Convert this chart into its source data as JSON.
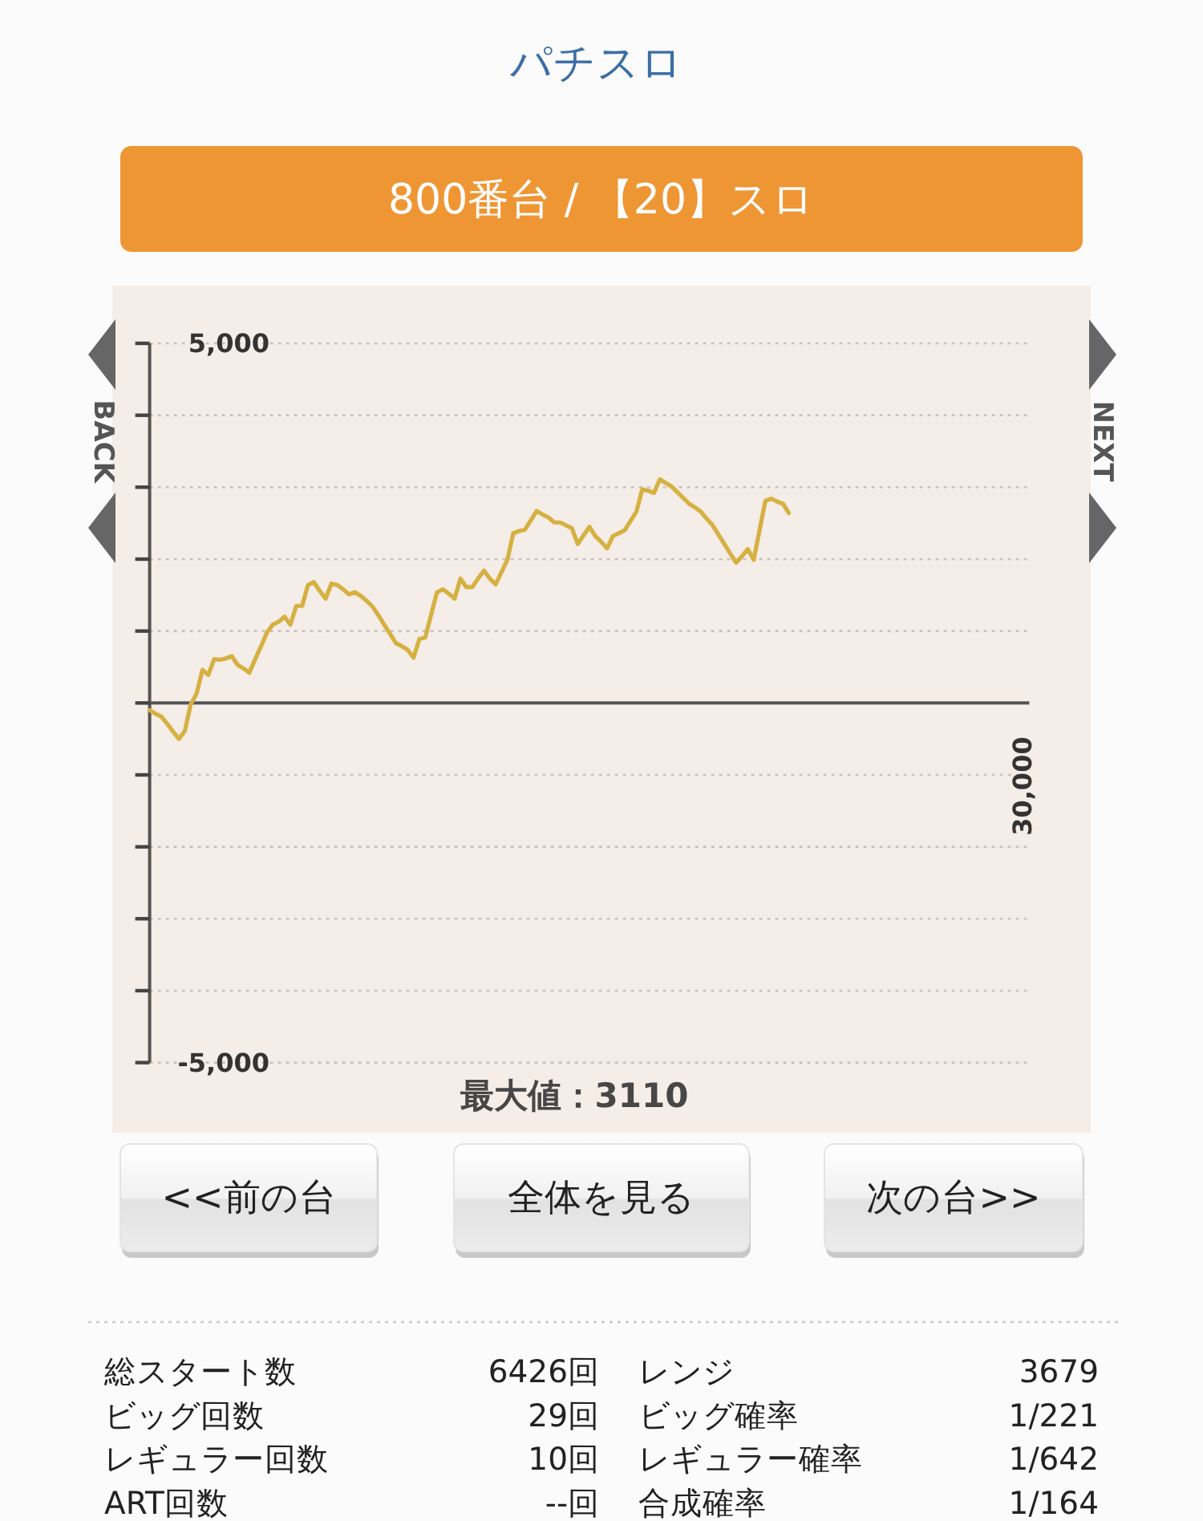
{
  "chart_data": {
    "type": "line",
    "title": "パチスロ",
    "subtitle": "800番台 / 【20】スロ",
    "categories": [
      null,
      null,
      null,
      null,
      null,
      null,
      null,
      null,
      null,
      null,
      null,
      null,
      null,
      null,
      null,
      null,
      null,
      null,
      null,
      null,
      null,
      null,
      null,
      null,
      null,
      null,
      null,
      null,
      null,
      null,
      null,
      null,
      null,
      null,
      null,
      null,
      null,
      null,
      null,
      null,
      null,
      null,
      null,
      null,
      null,
      null,
      null,
      null,
      null,
      null,
      null,
      null,
      null,
      null,
      null,
      null,
      null,
      null,
      null,
      null,
      null,
      null,
      null,
      null,
      null,
      null,
      null,
      null,
      null,
      null,
      null,
      null,
      null,
      null,
      null,
      null,
      null,
      null,
      null,
      null,
      null,
      null,
      null,
      null,
      null,
      null,
      null,
      null,
      null,
      null,
      null,
      null,
      null,
      null,
      null,
      null,
      null,
      null,
      null,
      null,
      null,
      null,
      null,
      null,
      null,
      null,
      null,
      null,
      null,
      null,
      null,
      null,
      null,
      null,
      null,
      null,
      null,
      null,
      null,
      null,
      null,
      null,
      null,
      null,
      null,
      null,
      null,
      null,
      null,
      null,
      null,
      null,
      null,
      null,
      null,
      null,
      null,
      null,
      null,
      null,
      null,
      null,
      null,
      null,
      null,
      null,
      null,
      null,
      null,
      null,
      null
    ],
    "values": [
      -100,
      -150,
      -190,
      -290,
      -400,
      -500,
      -390,
      -20,
      130,
      460,
      390,
      610,
      600,
      620,
      650,
      530,
      480,
      420,
      610,
      790,
      980,
      1090,
      1130,
      1200,
      1090,
      1350,
      1350,
      1640,
      1680,
      1560,
      1450,
      1660,
      1640,
      1580,
      1510,
      1540,
      1490,
      1420,
      1340,
      1220,
      1090,
      960,
      830,
      790,
      740,
      630,
      890,
      910,
      1230,
      1540,
      1580,
      1520,
      1450,
      1730,
      1610,
      1610,
      1730,
      1840,
      1730,
      1650,
      1820,
      1990,
      2360,
      2390,
      2410,
      2540,
      2670,
      2620,
      2580,
      2510,
      2510,
      2470,
      2430,
      2210,
      2330,
      2450,
      2320,
      2240,
      2150,
      2320,
      2360,
      2400,
      2530,
      2660,
      2970,
      2950,
      2920,
      3110,
      3060,
      3010,
      2930,
      2850,
      2770,
      2720,
      2660,
      2560,
      2470,
      2340,
      2210,
      2080,
      1950,
      2040,
      2140,
      1990,
      2400,
      2810,
      2840,
      2800,
      2770,
      2640,
      null,
      null,
      null,
      null,
      null,
      null,
      null,
      null,
      null,
      null,
      null,
      null,
      null,
      null,
      null,
      null,
      null,
      null,
      null,
      null,
      null,
      null,
      null,
      null,
      null,
      null,
      null,
      null,
      null,
      null,
      null,
      null,
      null,
      null,
      null,
      null,
      null,
      null,
      null,
      null,
      null
    ],
    "color": "#d6b040",
    "ylim": [
      -5000,
      5000
    ],
    "yticks": [
      {
        "value": -5000,
        "label": "-5,000"
      },
      {
        "value": -4000,
        "label": null
      },
      {
        "value": -3000,
        "label": null
      },
      {
        "value": -2000,
        "label": null
      },
      {
        "value": -1000,
        "label": null
      },
      {
        "value": 0,
        "label": null
      },
      {
        "value": 1000,
        "label": null
      },
      {
        "value": 2000,
        "label": null
      },
      {
        "value": 3000,
        "label": null
      },
      {
        "value": 4000,
        "label": null
      },
      {
        "value": 5000,
        "label": "5,000"
      }
    ],
    "grid": "y",
    "annotations": [
      "最大値：3110",
      "<<前の台",
      "全体を見る",
      "次の台>>",
      "BACK",
      "NEXT",
      "30,000",
      "総スタート数",
      "6426回",
      "レンジ",
      "3679",
      "ビッグ回数",
      "29回",
      "ビッグ確率",
      "1/221",
      "レギュラー回数",
      "10回",
      "レギュラー確率",
      "1/642",
      "ART回数",
      "--回",
      "合成確率",
      "1/164"
    ]
  }
}
